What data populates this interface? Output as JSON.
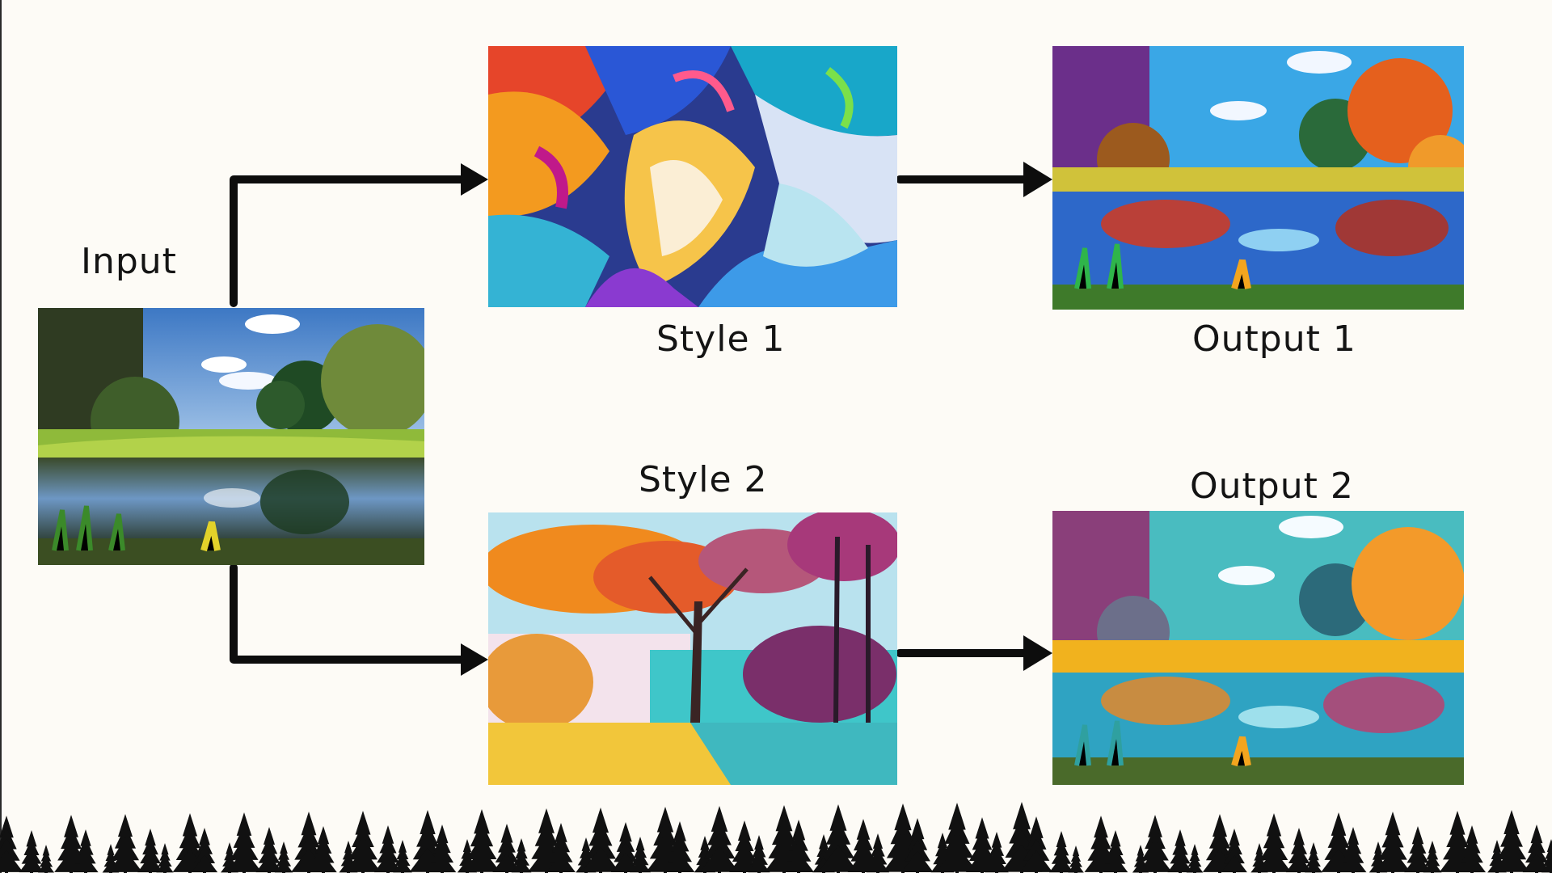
{
  "labels": {
    "input": "Input",
    "style1": "Style 1",
    "style2": "Style 2",
    "output1": "Output 1",
    "output2": "Output 2"
  },
  "colors": {
    "background": "#fdfbf6",
    "ink": "#0d0d0d",
    "trees": "#111111"
  }
}
